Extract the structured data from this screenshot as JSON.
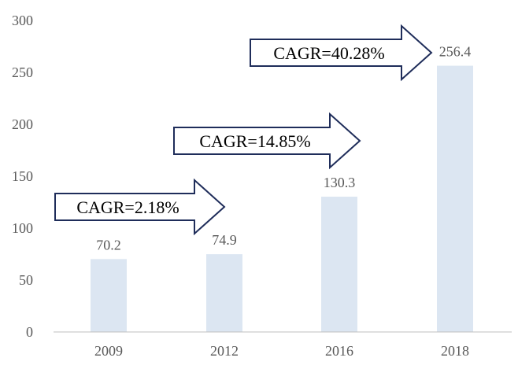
{
  "colors": {
    "bar": "#dce6f2",
    "axis": "#bfbfbf",
    "label": "#595959",
    "arrow_stroke": "#1f2d5a"
  },
  "chart_data": {
    "type": "bar",
    "categories": [
      "2009",
      "2012",
      "2016",
      "2018"
    ],
    "values": [
      70.2,
      74.9,
      130.3,
      256.4
    ],
    "data_labels": [
      "70.2",
      "74.9",
      "130.3",
      "256.4"
    ],
    "yticks": [
      "0",
      "50",
      "100",
      "150",
      "200",
      "250",
      "300"
    ],
    "ylim": [
      0,
      300
    ],
    "grid": false,
    "legend": "none",
    "annotations": [
      {
        "text": "CAGR=2.18%",
        "shape": "right-arrow",
        "from_category": "2009",
        "to_category": "2012"
      },
      {
        "text": "CAGR=14.85%",
        "shape": "right-arrow",
        "from_category": "2012",
        "to_category": "2016"
      },
      {
        "text": "CAGR=40.28%",
        "shape": "right-arrow",
        "from_category": "2016",
        "to_category": "2018"
      }
    ]
  }
}
